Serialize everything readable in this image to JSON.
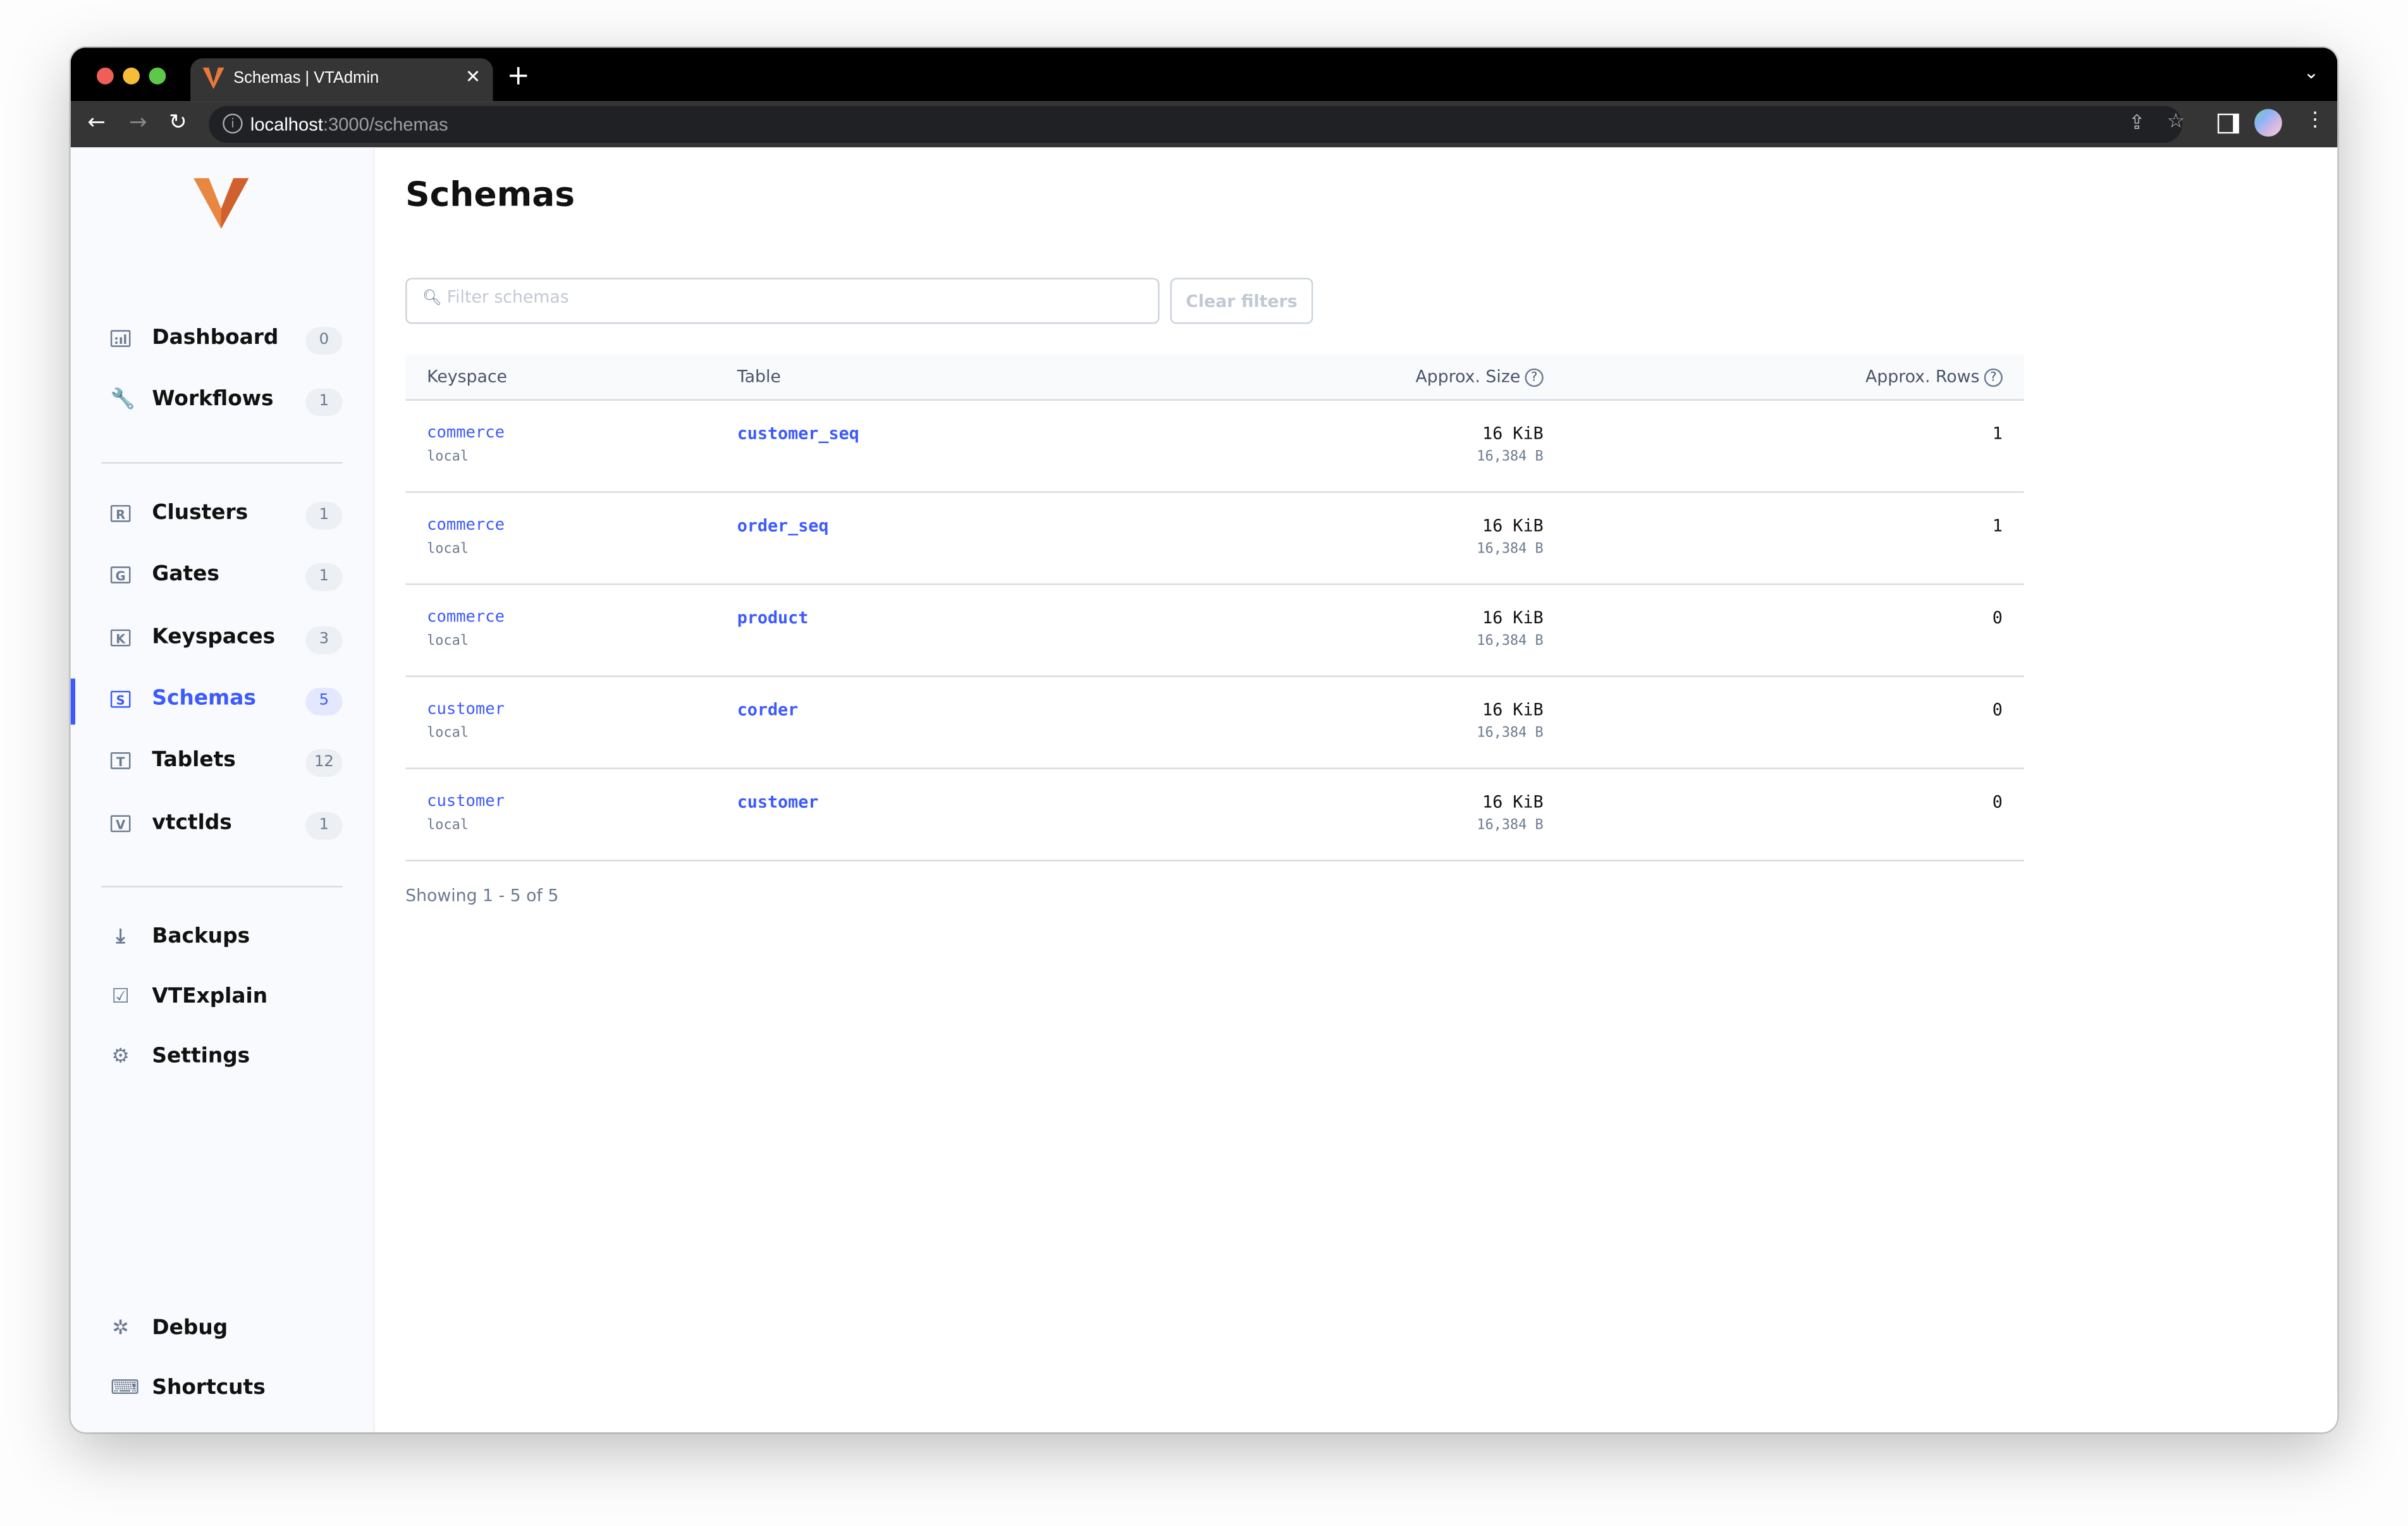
{
  "browser": {
    "tab_title": "Schemas | VTAdmin",
    "url_host": "localhost",
    "url_path": ":3000/schemas",
    "colors": {
      "close": "#ee5f57",
      "minimize": "#f6bd3b",
      "maximize": "#5fc84a"
    }
  },
  "sidebar": {
    "groups": [
      [
        {
          "label": "Dashboard",
          "icon": "dashboard-icon",
          "glyph": ":ıl",
          "count": "0"
        },
        {
          "label": "Workflows",
          "icon": "wrench-icon",
          "glyph": "🔧",
          "count": "1"
        }
      ],
      [
        {
          "label": "Clusters",
          "icon": "clusters-icon",
          "glyph": "R",
          "count": "1"
        },
        {
          "label": "Gates",
          "icon": "gates-icon",
          "glyph": "G",
          "count": "1"
        },
        {
          "label": "Keyspaces",
          "icon": "keyspaces-icon",
          "glyph": "K",
          "count": "3"
        },
        {
          "label": "Schemas",
          "icon": "schemas-icon",
          "glyph": "S",
          "count": "5",
          "active": true
        },
        {
          "label": "Tablets",
          "icon": "tablets-icon",
          "glyph": "T",
          "count": "12"
        },
        {
          "label": "vtctlds",
          "icon": "vtctlds-icon",
          "glyph": "V",
          "count": "1"
        }
      ],
      [
        {
          "label": "Backups",
          "icon": "download-icon",
          "glyph": "⤓"
        },
        {
          "label": "VTExplain",
          "icon": "vtexplain-icon",
          "glyph": "☑"
        },
        {
          "label": "Settings",
          "icon": "gear-icon",
          "glyph": "⚙"
        }
      ],
      [
        {
          "label": "Debug",
          "icon": "bug-icon",
          "glyph": "✲"
        },
        {
          "label": "Shortcuts",
          "icon": "keyboard-icon",
          "glyph": "⌨"
        }
      ]
    ],
    "accent": "#3d5afe"
  },
  "main": {
    "title": "Schemas",
    "search_placeholder": "Filter schemas",
    "search_value": "",
    "clear_label": "Clear filters",
    "columns": [
      "Keyspace",
      "Table",
      "Approx. Size",
      "Approx. Rows"
    ],
    "rows": [
      {
        "keyspace": "commerce",
        "cluster": "local",
        "table": "customer_seq",
        "size": "16 KiB",
        "bytes": "16,384 B",
        "rows": "1"
      },
      {
        "keyspace": "commerce",
        "cluster": "local",
        "table": "order_seq",
        "size": "16 KiB",
        "bytes": "16,384 B",
        "rows": "1"
      },
      {
        "keyspace": "commerce",
        "cluster": "local",
        "table": "product",
        "size": "16 KiB",
        "bytes": "16,384 B",
        "rows": "0"
      },
      {
        "keyspace": "customer",
        "cluster": "local",
        "table": "corder",
        "size": "16 KiB",
        "bytes": "16,384 B",
        "rows": "0"
      },
      {
        "keyspace": "customer",
        "cluster": "local",
        "table": "customer",
        "size": "16 KiB",
        "bytes": "16,384 B",
        "rows": "0"
      }
    ],
    "pagination": "Showing 1 - 5 of 5"
  }
}
